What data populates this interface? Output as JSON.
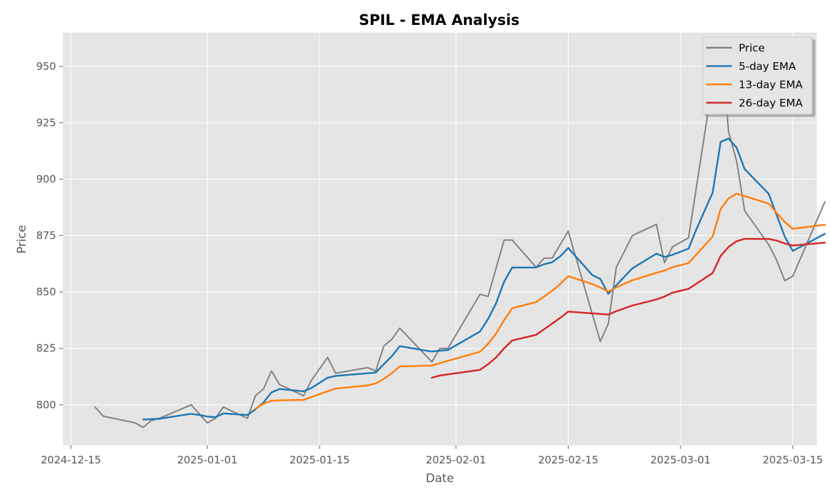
{
  "chart_data": {
    "type": "line",
    "title": "SPIL - EMA Analysis",
    "xlabel": "Date",
    "ylabel": "Price",
    "xlim": [
      "2024-12-14",
      "2025-03-18"
    ],
    "ylim": [
      782,
      965
    ],
    "x_ticks": [
      "2024-12-15",
      "2025-01-01",
      "2025-01-15",
      "2025-02-01",
      "2025-02-15",
      "2025-03-01",
      "2025-03-15"
    ],
    "y_ticks": [
      800,
      825,
      850,
      875,
      900,
      925,
      950
    ],
    "grid": true,
    "legend_position": "top-right",
    "series": [
      {
        "name": "Price",
        "color": "#808080",
        "points": [
          [
            "2024-12-18",
            799
          ],
          [
            "2024-12-19",
            795
          ],
          [
            "2024-12-23",
            792
          ],
          [
            "2024-12-24",
            790
          ],
          [
            "2024-12-25",
            793
          ],
          [
            "2024-12-26",
            794
          ],
          [
            "2024-12-30",
            800
          ],
          [
            "2024-12-31",
            796
          ],
          [
            "2025-01-01",
            792
          ],
          [
            "2025-01-02",
            794
          ],
          [
            "2025-01-03",
            799
          ],
          [
            "2025-01-06",
            794
          ],
          [
            "2025-01-07",
            804
          ],
          [
            "2025-01-08",
            807
          ],
          [
            "2025-01-09",
            815
          ],
          [
            "2025-01-10",
            809
          ],
          [
            "2025-01-13",
            804
          ],
          [
            "2025-01-14",
            811
          ],
          [
            "2025-01-16",
            821
          ],
          [
            "2025-01-17",
            814
          ],
          [
            "2025-01-21",
            816.5
          ],
          [
            "2025-01-22",
            815
          ],
          [
            "2025-01-23",
            826
          ],
          [
            "2025-01-24",
            829
          ],
          [
            "2025-01-25",
            834
          ],
          [
            "2025-01-29",
            819
          ],
          [
            "2025-01-30",
            825
          ],
          [
            "2025-01-31",
            825
          ],
          [
            "2025-02-04",
            849
          ],
          [
            "2025-02-05",
            848
          ],
          [
            "2025-02-07",
            873
          ],
          [
            "2025-02-08",
            873
          ],
          [
            "2025-02-11",
            861
          ],
          [
            "2025-02-12",
            865
          ],
          [
            "2025-02-13",
            865
          ],
          [
            "2025-02-15",
            877
          ],
          [
            "2025-02-19",
            828
          ],
          [
            "2025-02-20",
            836
          ],
          [
            "2025-02-21",
            861
          ],
          [
            "2025-02-23",
            875
          ],
          [
            "2025-02-26",
            880
          ],
          [
            "2025-02-27",
            863
          ],
          [
            "2025-02-28",
            870
          ],
          [
            "2025-03-02",
            874
          ],
          [
            "2025-03-05",
            943
          ],
          [
            "2025-03-06",
            962
          ],
          [
            "2025-03-07",
            921
          ],
          [
            "2025-03-08",
            908
          ],
          [
            "2025-03-09",
            886
          ],
          [
            "2025-03-12",
            871
          ],
          [
            "2025-03-13",
            864
          ],
          [
            "2025-03-14",
            855
          ],
          [
            "2025-03-15",
            857
          ],
          [
            "2025-03-19",
            890
          ]
        ]
      },
      {
        "name": "5-day EMA",
        "color": "#1f77b4",
        "points": [
          [
            "2024-12-24",
            793.5
          ],
          [
            "2024-12-26",
            793.8
          ],
          [
            "2024-12-30",
            796
          ],
          [
            "2024-12-31",
            795.5
          ],
          [
            "2025-01-01",
            794.8
          ],
          [
            "2025-01-02",
            794.5
          ],
          [
            "2025-01-03",
            796.2
          ],
          [
            "2025-01-06",
            795.5
          ],
          [
            "2025-01-07",
            798
          ],
          [
            "2025-01-08",
            801
          ],
          [
            "2025-01-09",
            805.5
          ],
          [
            "2025-01-10",
            807
          ],
          [
            "2025-01-13",
            806
          ],
          [
            "2025-01-14",
            807.5
          ],
          [
            "2025-01-16",
            812
          ],
          [
            "2025-01-17",
            812.8
          ],
          [
            "2025-01-21",
            814
          ],
          [
            "2025-01-22",
            814.3
          ],
          [
            "2025-01-23",
            818
          ],
          [
            "2025-01-24",
            821.5
          ],
          [
            "2025-01-25",
            826
          ],
          [
            "2025-01-29",
            823.6
          ],
          [
            "2025-01-30",
            824
          ],
          [
            "2025-01-31",
            824.3
          ],
          [
            "2025-02-04",
            832.5
          ],
          [
            "2025-02-05",
            838
          ],
          [
            "2025-02-06",
            845
          ],
          [
            "2025-02-07",
            854.5
          ],
          [
            "2025-02-08",
            860.8
          ],
          [
            "2025-02-11",
            860.9
          ],
          [
            "2025-02-12",
            862.3
          ],
          [
            "2025-02-13",
            863.2
          ],
          [
            "2025-02-14",
            865.8
          ],
          [
            "2025-02-15",
            869.5
          ],
          [
            "2025-02-18",
            857.5
          ],
          [
            "2025-02-19",
            855.8
          ],
          [
            "2025-02-20",
            849.2
          ],
          [
            "2025-02-21",
            853
          ],
          [
            "2025-02-23",
            860.5
          ],
          [
            "2025-02-26",
            867
          ],
          [
            "2025-02-27",
            865.5
          ],
          [
            "2025-02-28",
            866.5
          ],
          [
            "2025-03-02",
            869.2
          ],
          [
            "2025-03-03",
            878
          ],
          [
            "2025-03-05",
            894
          ],
          [
            "2025-03-06",
            916.5
          ],
          [
            "2025-03-07",
            918
          ],
          [
            "2025-03-08",
            914
          ],
          [
            "2025-03-09",
            904.5
          ],
          [
            "2025-03-12",
            893.5
          ],
          [
            "2025-03-13",
            884
          ],
          [
            "2025-03-14",
            874.5
          ],
          [
            "2025-03-15",
            868.2
          ],
          [
            "2025-03-19",
            875.8
          ]
        ]
      },
      {
        "name": "13-day EMA",
        "color": "#ff7f0e",
        "points": [
          [
            "2025-01-07",
            798.2
          ],
          [
            "2025-01-08",
            800.5
          ],
          [
            "2025-01-09",
            801.8
          ],
          [
            "2025-01-10",
            802
          ],
          [
            "2025-01-13",
            802.2
          ],
          [
            "2025-01-16",
            806
          ],
          [
            "2025-01-17",
            807.2
          ],
          [
            "2025-01-21",
            808.6
          ],
          [
            "2025-01-22",
            809.5
          ],
          [
            "2025-01-23",
            811.5
          ],
          [
            "2025-01-24",
            814
          ],
          [
            "2025-01-25",
            817
          ],
          [
            "2025-01-29",
            817.4
          ],
          [
            "2025-01-30",
            818.5
          ],
          [
            "2025-01-31",
            819.5
          ],
          [
            "2025-02-04",
            823.5
          ],
          [
            "2025-02-05",
            827
          ],
          [
            "2025-02-06",
            831.5
          ],
          [
            "2025-02-07",
            837.5
          ],
          [
            "2025-02-08",
            842.8
          ],
          [
            "2025-02-11",
            845.5
          ],
          [
            "2025-02-12",
            848
          ],
          [
            "2025-02-13",
            850.5
          ],
          [
            "2025-02-14",
            853.5
          ],
          [
            "2025-02-15",
            857
          ],
          [
            "2025-02-18",
            853.5
          ],
          [
            "2025-02-19",
            852
          ],
          [
            "2025-02-20",
            850.2
          ],
          [
            "2025-02-21",
            852
          ],
          [
            "2025-02-23",
            855.2
          ],
          [
            "2025-02-26",
            858.5
          ],
          [
            "2025-02-27",
            859.5
          ],
          [
            "2025-02-28",
            861
          ],
          [
            "2025-03-02",
            862.8
          ],
          [
            "2025-03-05",
            874.5
          ],
          [
            "2025-03-06",
            886.8
          ],
          [
            "2025-03-07",
            891.5
          ],
          [
            "2025-03-08",
            893.6
          ],
          [
            "2025-03-09",
            892.5
          ],
          [
            "2025-03-12",
            889.2
          ],
          [
            "2025-03-13",
            885
          ],
          [
            "2025-03-14",
            881
          ],
          [
            "2025-03-15",
            878
          ],
          [
            "2025-03-19",
            879.8
          ]
        ]
      },
      {
        "name": "26-day EMA",
        "color": "#d62728",
        "points": [
          [
            "2025-01-29",
            812
          ],
          [
            "2025-01-30",
            813
          ],
          [
            "2025-02-04",
            815.5
          ],
          [
            "2025-02-05",
            818
          ],
          [
            "2025-02-06",
            821
          ],
          [
            "2025-02-07",
            825
          ],
          [
            "2025-02-08",
            828.5
          ],
          [
            "2025-02-11",
            831
          ],
          [
            "2025-02-12",
            833.5
          ],
          [
            "2025-02-13",
            836
          ],
          [
            "2025-02-14",
            838.5
          ],
          [
            "2025-02-15",
            841.3
          ],
          [
            "2025-02-20",
            840
          ],
          [
            "2025-02-21",
            841.5
          ],
          [
            "2025-02-23",
            844
          ],
          [
            "2025-02-26",
            846.7
          ],
          [
            "2025-02-27",
            848
          ],
          [
            "2025-02-28",
            849.7
          ],
          [
            "2025-03-02",
            851.4
          ],
          [
            "2025-03-05",
            858.4
          ],
          [
            "2025-03-06",
            866
          ],
          [
            "2025-03-07",
            870
          ],
          [
            "2025-03-08",
            872.5
          ],
          [
            "2025-03-09",
            873.6
          ],
          [
            "2025-03-12",
            873.5
          ],
          [
            "2025-03-13",
            872.8
          ],
          [
            "2025-03-14",
            871.5
          ],
          [
            "2025-03-15",
            870.6
          ],
          [
            "2025-03-19",
            871.9
          ]
        ]
      }
    ]
  }
}
